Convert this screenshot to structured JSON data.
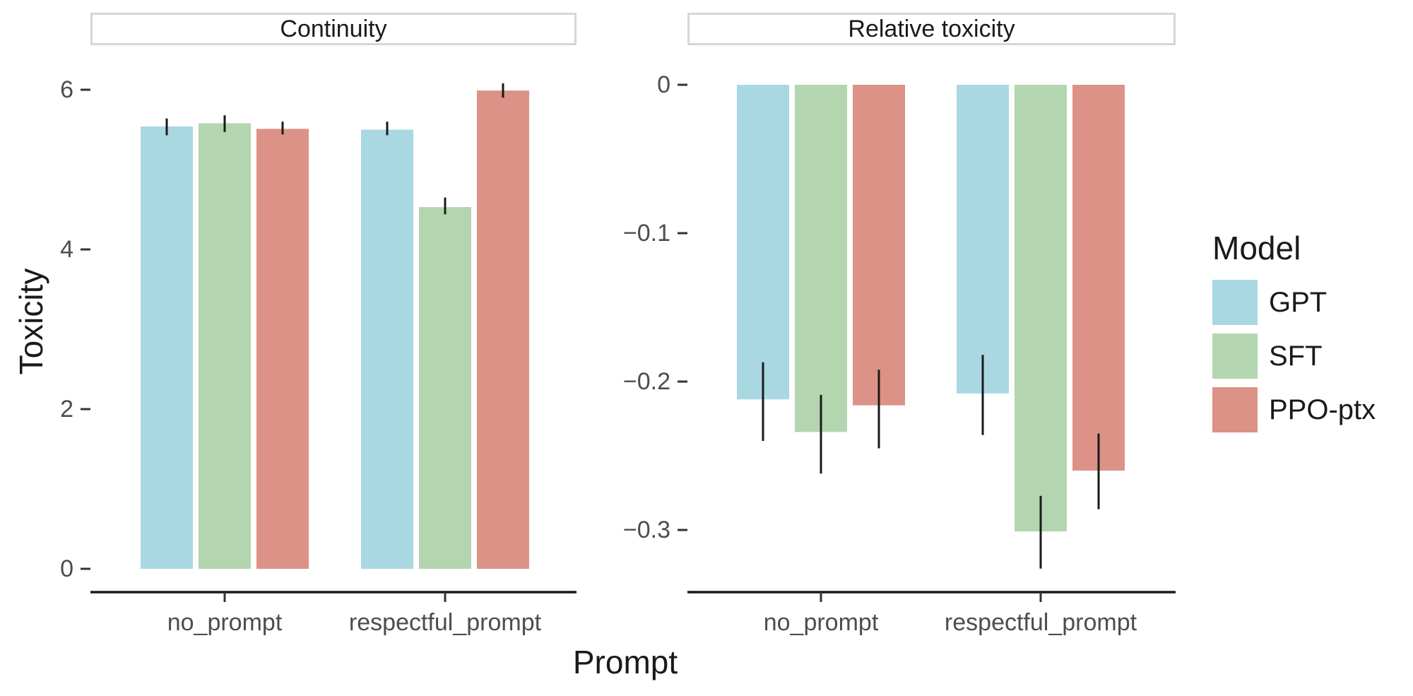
{
  "figure": {
    "background": "#FFFFFF",
    "legend": {
      "title": "Model",
      "items": [
        {
          "label": "GPT",
          "color": "#A9D7E2"
        },
        {
          "label": "SFT",
          "color": "#B3D5B0"
        },
        {
          "label": "PPO-ptx",
          "color": "#DC9286"
        }
      ]
    }
  },
  "chart_data": {
    "type": "bar",
    "xlabel": "Prompt",
    "ylabel": "Toxicity",
    "legend_title": "Model",
    "legend_position": "right",
    "grid": false,
    "error_bars": true,
    "categories": [
      "no_prompt",
      "respectful_prompt"
    ],
    "facets": [
      {
        "title": "Continuity",
        "ylim": [
          -0.29,
          6.52
        ],
        "yticks": [
          {
            "v": 0,
            "label": "0"
          },
          {
            "v": 2,
            "label": "2"
          },
          {
            "v": 4,
            "label": "4"
          },
          {
            "v": 6,
            "label": "6"
          }
        ],
        "series": [
          {
            "name": "GPT",
            "color": "#A9D7E2",
            "values": [
              5.54,
              5.5
            ],
            "err_lo": [
              5.43,
              5.43
            ],
            "err_hi": [
              5.64,
              5.6
            ]
          },
          {
            "name": "SFT",
            "color": "#B3D5B0",
            "values": [
              5.58,
              4.53
            ],
            "err_lo": [
              5.47,
              4.44
            ],
            "err_hi": [
              5.68,
              4.65
            ]
          },
          {
            "name": "PPO-ptx",
            "color": "#DC9286",
            "values": [
              5.51,
              5.99
            ],
            "err_lo": [
              5.44,
              5.9
            ],
            "err_hi": [
              5.6,
              6.08
            ]
          }
        ]
      },
      {
        "title": "Relative toxicity",
        "ylim": [
          -0.342,
          0.025
        ],
        "yticks": [
          {
            "v": 0,
            "label": "0"
          },
          {
            "v": -0.1,
            "label": "−0.1"
          },
          {
            "v": -0.2,
            "label": "−0.2"
          },
          {
            "v": -0.3,
            "label": "−0.3"
          }
        ],
        "series": [
          {
            "name": "GPT",
            "color": "#A9D7E2",
            "values": [
              -0.212,
              -0.208
            ],
            "err_lo": [
              -0.24,
              -0.236
            ],
            "err_hi": [
              -0.187,
              -0.182
            ]
          },
          {
            "name": "SFT",
            "color": "#B3D5B0",
            "values": [
              -0.234,
              -0.301
            ],
            "err_lo": [
              -0.262,
              -0.326
            ],
            "err_hi": [
              -0.209,
              -0.277
            ]
          },
          {
            "name": "PPO-ptx",
            "color": "#DC9286",
            "values": [
              -0.216,
              -0.26
            ],
            "err_lo": [
              -0.245,
              -0.286
            ],
            "err_hi": [
              -0.192,
              -0.235
            ]
          }
        ]
      }
    ]
  }
}
